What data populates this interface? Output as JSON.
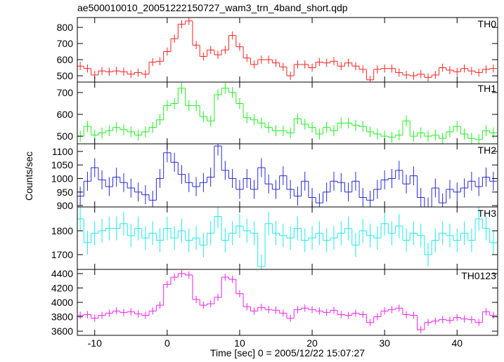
{
  "chart_data": {
    "type": "step",
    "title": "ae500010010_20051222150727_wam3_trn_4band_short.qdp",
    "xlabel": "Time [sec] 0 = 2005/12/22 15:07:27",
    "ylabel": "Counts/sec",
    "xlim": [
      -12.4,
      45.6
    ],
    "xticks": [
      -10,
      0,
      10,
      20,
      30,
      40
    ],
    "x": [
      -12,
      -11,
      -10,
      -9,
      -8,
      -7,
      -6,
      -5,
      -4,
      -3,
      -2,
      -1,
      0,
      1,
      2,
      3,
      4,
      5,
      6,
      7,
      8,
      9,
      10,
      11,
      12,
      13,
      14,
      15,
      16,
      17,
      18,
      19,
      20,
      21,
      22,
      23,
      24,
      25,
      26,
      27,
      28,
      29,
      30,
      31,
      32,
      33,
      34,
      35,
      36,
      37,
      38,
      39,
      40,
      41,
      42,
      43,
      44,
      45
    ],
    "panels": [
      {
        "name": "TH0",
        "color": "#ff2020",
        "ylim": [
          461,
          861
        ],
        "yticks": [
          500,
          600,
          700,
          800
        ],
        "error": 25,
        "values": [
          560,
          545,
          505,
          530,
          525,
          530,
          525,
          510,
          520,
          510,
          585,
          590,
          650,
          730,
          820,
          840,
          690,
          620,
          660,
          630,
          660,
          750,
          680,
          610,
          570,
          600,
          600,
          580,
          555,
          500,
          570,
          570,
          550,
          585,
          580,
          590,
          560,
          580,
          560,
          540,
          475,
          540,
          545,
          545,
          520,
          505,
          500,
          510,
          490,
          505,
          550,
          535,
          525,
          545,
          530,
          520,
          540,
          545
        ]
      },
      {
        "name": "TH1",
        "color": "#20ee20",
        "ylim": [
          465,
          748
        ],
        "yticks": [
          500,
          600,
          700
        ],
        "error": 25,
        "values": [
          500,
          545,
          505,
          515,
          525,
          540,
          530,
          520,
          505,
          520,
          540,
          575,
          640,
          650,
          720,
          640,
          640,
          590,
          570,
          690,
          720,
          700,
          650,
          585,
          575,
          560,
          540,
          525,
          525,
          515,
          580,
          555,
          540,
          510,
          540,
          525,
          560,
          560,
          550,
          545,
          520,
          510,
          500,
          495,
          505,
          570,
          500,
          515,
          500,
          505,
          490,
          520,
          545,
          510,
          490,
          485,
          525,
          515
        ]
      },
      {
        "name": "TH2",
        "color": "#2828d0",
        "ylim": [
          895,
          1128
        ],
        "yticks": [
          900,
          950,
          1000,
          1050,
          1100
        ],
        "error": 35,
        "values": [
          935,
          990,
          1040,
          995,
          970,
          1005,
          985,
          965,
          950,
          940,
          920,
          1000,
          1095,
          1060,
          1015,
          985,
          970,
          985,
          1005,
          1120,
          1030,
          1000,
          960,
          1000,
          960,
          1040,
          980,
          960,
          1010,
          960,
          935,
          990,
          930,
          910,
          950,
          990,
          985,
          950,
          990,
          930,
          920,
          960,
          995,
          1000,
          1030,
          980,
          1010,
          930,
          895,
          965,
          910,
          960,
          950,
          965,
          990,
          970,
          1005,
          990
        ]
      },
      {
        "name": "TH3",
        "color": "#20e8e8",
        "ylim": [
          1638,
          1900
        ],
        "yticks": [
          1700,
          1800
        ],
        "error": 50,
        "values": [
          1850,
          1750,
          1790,
          1800,
          1810,
          1810,
          1830,
          1780,
          1810,
          1770,
          1790,
          1760,
          1810,
          1770,
          1800,
          1760,
          1770,
          1740,
          1790,
          1860,
          1760,
          1790,
          1820,
          1800,
          1790,
          1650,
          1830,
          1790,
          1780,
          1770,
          1810,
          1760,
          1770,
          1790,
          1760,
          1770,
          1790,
          1810,
          1740,
          1800,
          1780,
          1770,
          1830,
          1790,
          1820,
          1760,
          1790,
          1780,
          1700,
          1760,
          1790,
          1780,
          1760,
          1790,
          1760,
          1850,
          1810,
          1750
        ]
      },
      {
        "name": "TH0123",
        "color": "#ee20ee",
        "ylim": [
          3542,
          4458
        ],
        "yticks": [
          3600,
          3800,
          4000,
          4200,
          4400
        ],
        "error": 50,
        "values": [
          3820,
          3830,
          3780,
          3820,
          3850,
          3880,
          3860,
          3870,
          3840,
          3820,
          3880,
          3960,
          4250,
          4350,
          4400,
          4380,
          4040,
          3960,
          3980,
          4070,
          4350,
          4320,
          4120,
          3940,
          3880,
          3930,
          3900,
          3890,
          3850,
          3780,
          3900,
          3920,
          3900,
          3880,
          3860,
          3890,
          3830,
          3820,
          3850,
          3830,
          3720,
          3800,
          3880,
          3900,
          3920,
          3830,
          3820,
          3620,
          3720,
          3740,
          3760,
          3750,
          3790,
          3770,
          3760,
          3720,
          3870,
          3820
        ]
      }
    ]
  }
}
